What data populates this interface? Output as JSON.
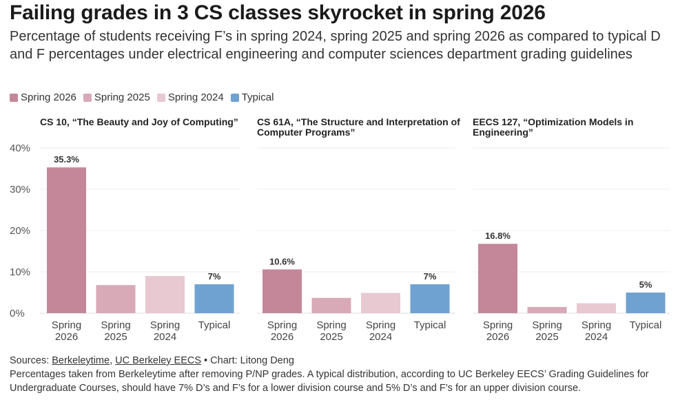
{
  "title": "Failing grades in 3 CS classes skyrocket in spring 2026",
  "subtitle": "Percentage of students receiving F’s in spring 2024, spring 2025 and spring 2026 as compared to typical D and F percentages under electrical engineering and computer sciences department grading guidelines",
  "colors": {
    "Spring 2026": "#c4879a",
    "Spring 2025": "#d8a9b7",
    "Spring 2024": "#e8c8d1",
    "Typical": "#6fa2d0"
  },
  "legend": [
    {
      "label": "Spring 2026",
      "key": "Spring 2026"
    },
    {
      "label": "Spring 2025",
      "key": "Spring 2025"
    },
    {
      "label": "Spring 2024",
      "key": "Spring 2024"
    },
    {
      "label": "Typical",
      "key": "Typical"
    }
  ],
  "chart_data": [
    {
      "type": "bar",
      "title": "CS 10, “The Beauty and Joy of Computing”",
      "categories": [
        "Spring 2026",
        "Spring 2025",
        "Spring 2024",
        "Typical"
      ],
      "values": [
        35.3,
        6.8,
        9.0,
        7
      ],
      "data_labels": [
        "35.3%",
        "",
        "",
        "7%"
      ],
      "ylim": [
        0,
        40
      ],
      "yticks": [
        0,
        10,
        20,
        30,
        40
      ],
      "ytick_labels": [
        "0%",
        "10%",
        "20%",
        "30%",
        "40%"
      ],
      "grid": true
    },
    {
      "type": "bar",
      "title": "CS 61A, “The Structure and Interpretation of Computer Programs”",
      "categories": [
        "Spring 2026",
        "Spring 2025",
        "Spring 2024",
        "Typical"
      ],
      "values": [
        10.6,
        3.7,
        4.9,
        7
      ],
      "data_labels": [
        "10.6%",
        "",
        "",
        "7%"
      ],
      "ylim": [
        0,
        40
      ],
      "grid": true
    },
    {
      "type": "bar",
      "title": "EECS 127, “Optimization Models in Engineering”",
      "categories": [
        "Spring 2026",
        "Spring 2025",
        "Spring 2024",
        "Typical"
      ],
      "values": [
        16.8,
        1.5,
        2.4,
        5
      ],
      "data_labels": [
        "16.8%",
        "",
        "",
        "5%"
      ],
      "ylim": [
        0,
        40
      ],
      "grid": true
    }
  ],
  "footer": {
    "sources_prefix": "Sources: ",
    "source1": "Berkeleytime",
    "sep1": ", ",
    "source2": "UC Berkeley EECS",
    "credit": " • Chart: Litong Deng",
    "note": "Percentages taken from Berkeleytime after removing P/NP grades. A typical distribution, according to UC Berkeley EECS’ Grading Guidelines for Undergraduate Courses, should have 7% D’s and F’s for a lower division course and 5% D’s and F’s for an upper division course."
  }
}
